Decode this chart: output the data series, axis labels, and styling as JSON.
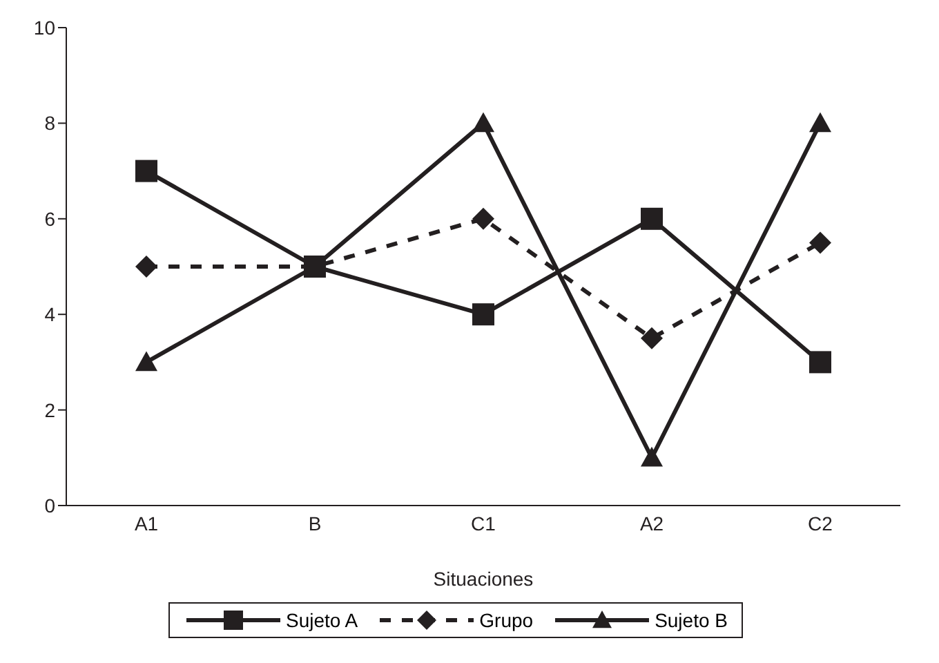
{
  "chart_data": {
    "type": "line",
    "xlabel": "Situaciones",
    "categories": [
      "A1",
      "B",
      "C1",
      "A2",
      "C2"
    ],
    "series": [
      {
        "name": "Sujeto A",
        "color": "#231f20",
        "values": [
          7,
          5,
          4,
          6,
          3
        ],
        "marker": "square",
        "line_style": "solid"
      },
      {
        "name": "Grupo",
        "color": "#231f20",
        "values": [
          5,
          5,
          6,
          3.5,
          5.5
        ],
        "marker": "diamond",
        "line_style": "dashed"
      },
      {
        "name": "Sujeto B",
        "color": "#231f20",
        "values": [
          3,
          5,
          8,
          1,
          8
        ],
        "marker": "triangle",
        "line_style": "solid"
      }
    ],
    "ylim": [
      0,
      10
    ],
    "yticks": [
      0,
      2,
      4,
      6,
      8,
      10
    ],
    "grid": false,
    "legend": "bottom"
  }
}
